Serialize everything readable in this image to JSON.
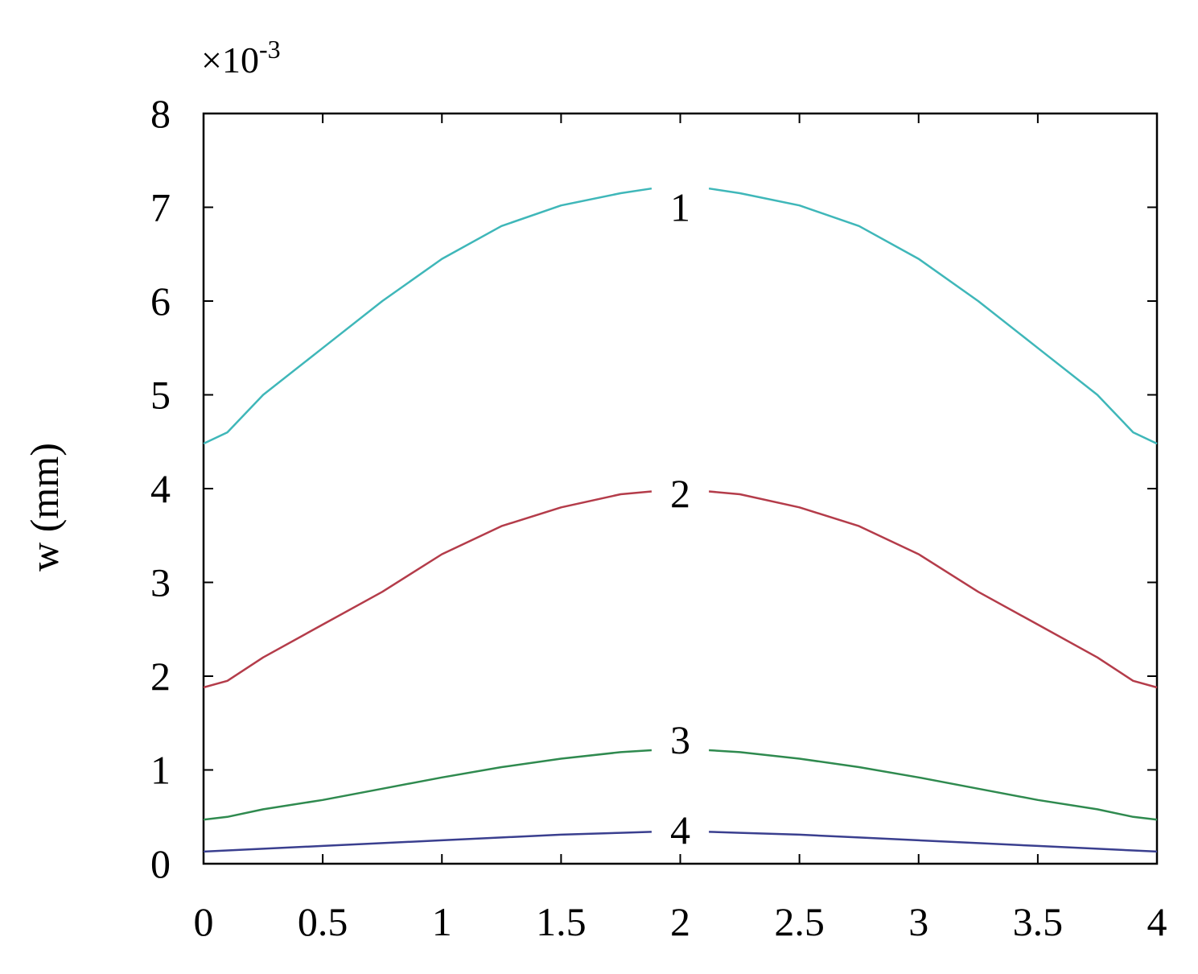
{
  "chart_data": {
    "type": "line",
    "title": "",
    "xlabel": "",
    "ylabel": "w  (mm)",
    "y_multiplier": {
      "base": "×10",
      "exponent": "-3"
    },
    "xlim": [
      0,
      4
    ],
    "ylim": [
      0,
      8
    ],
    "x_ticks": [
      "0",
      "0.5",
      "1",
      "1.5",
      "2",
      "2.5",
      "3",
      "3.5",
      "4"
    ],
    "y_ticks": [
      "0",
      "1",
      "2",
      "3",
      "4",
      "5",
      "6",
      "7",
      "8"
    ],
    "grid": false,
    "legend": "none",
    "gap_x": [
      1.88,
      2.12
    ],
    "series": [
      {
        "name": "1",
        "color": "#3fb7b9",
        "label_position": [
          2.0,
          7.0
        ],
        "x": [
          0,
          0.1,
          0.25,
          0.5,
          0.75,
          1.0,
          1.25,
          1.5,
          1.75,
          1.88,
          2.12,
          2.25,
          2.5,
          2.75,
          3.0,
          3.25,
          3.5,
          3.75,
          3.9,
          4.0
        ],
        "y": [
          4.48,
          4.6,
          5.0,
          5.5,
          6.0,
          6.45,
          6.8,
          7.02,
          7.15,
          7.2,
          7.2,
          7.15,
          7.02,
          6.8,
          6.45,
          6.0,
          5.5,
          5.0,
          4.6,
          4.48
        ]
      },
      {
        "name": "2",
        "color": "#b43c4a",
        "label_position": [
          2.0,
          3.95
        ],
        "x": [
          0,
          0.1,
          0.25,
          0.5,
          0.75,
          1.0,
          1.25,
          1.5,
          1.75,
          1.88,
          2.12,
          2.25,
          2.5,
          2.75,
          3.0,
          3.25,
          3.5,
          3.75,
          3.9,
          4.0
        ],
        "y": [
          1.88,
          1.95,
          2.2,
          2.55,
          2.9,
          3.3,
          3.6,
          3.8,
          3.94,
          3.97,
          3.97,
          3.94,
          3.8,
          3.6,
          3.3,
          2.9,
          2.55,
          2.2,
          1.95,
          1.88
        ]
      },
      {
        "name": "3",
        "color": "#2f8a4f",
        "label_position": [
          2.0,
          1.32
        ],
        "x": [
          0,
          0.1,
          0.25,
          0.5,
          0.75,
          1.0,
          1.25,
          1.5,
          1.75,
          1.88,
          2.12,
          2.25,
          2.5,
          2.75,
          3.0,
          3.25,
          3.5,
          3.75,
          3.9,
          4.0
        ],
        "y": [
          0.47,
          0.5,
          0.58,
          0.68,
          0.8,
          0.92,
          1.03,
          1.12,
          1.19,
          1.21,
          1.21,
          1.19,
          1.12,
          1.03,
          0.92,
          0.8,
          0.68,
          0.58,
          0.5,
          0.47
        ]
      },
      {
        "name": "4",
        "color": "#3a3f8f",
        "label_position": [
          2.0,
          0.36
        ],
        "x": [
          0,
          0.25,
          0.5,
          0.75,
          1.0,
          1.25,
          1.5,
          1.75,
          1.88,
          2.12,
          2.25,
          2.5,
          2.75,
          3.0,
          3.25,
          3.5,
          3.75,
          4.0
        ],
        "y": [
          0.13,
          0.16,
          0.19,
          0.22,
          0.25,
          0.28,
          0.31,
          0.33,
          0.34,
          0.34,
          0.33,
          0.31,
          0.28,
          0.25,
          0.22,
          0.19,
          0.16,
          0.13
        ]
      }
    ]
  }
}
